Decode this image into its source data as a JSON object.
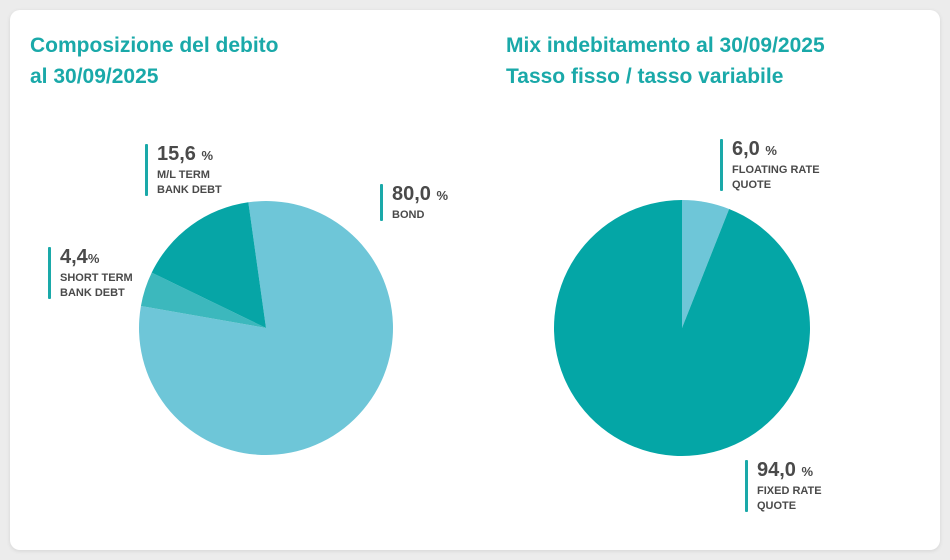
{
  "chart_data": [
    {
      "type": "pie",
      "title": [
        "Composizione del debito",
        "al 30/09/2025"
      ],
      "slices": [
        {
          "value": "80,0",
          "unit": "%",
          "label": [
            "BOND"
          ],
          "color": "#6ec6d8"
        },
        {
          "value": "4,4",
          "unit": "%",
          "label": [
            "SHORT TERM",
            "BANK DEBT"
          ],
          "color": "#3cb8bd"
        },
        {
          "value": "15,6",
          "unit": "%",
          "label": [
            "M/L TERM",
            "BANK DEBT"
          ],
          "color": "#06a5a6"
        }
      ]
    },
    {
      "type": "pie",
      "title": [
        "Mix indebitamento al 30/09/2025",
        "Tasso fisso / tasso variabile"
      ],
      "slices": [
        {
          "value": "6,0",
          "unit": "%",
          "label": [
            "FLOATING RATE",
            "QUOTE"
          ],
          "color": "#6ec6d8"
        },
        {
          "value": "94,0",
          "unit": "%",
          "label": [
            "FIXED RATE",
            "QUOTE"
          ],
          "color": "#04a6a6"
        }
      ]
    }
  ]
}
